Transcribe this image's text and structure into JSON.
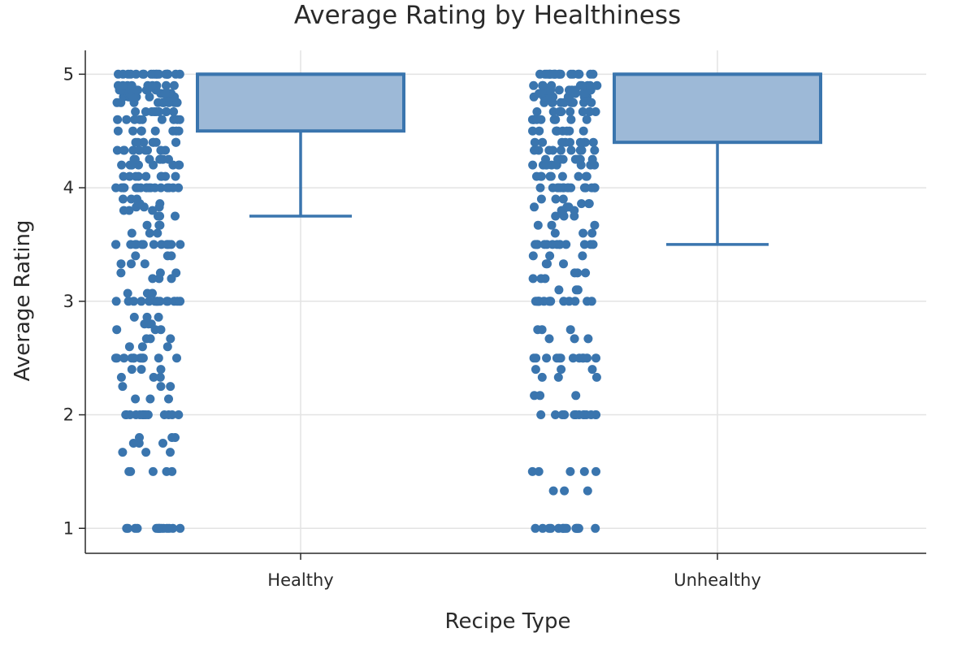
{
  "chart_data": {
    "type": "box",
    "title": "Average Rating by Healthiness",
    "xlabel": "Recipe Type",
    "ylabel": "Average Rating",
    "categories": [
      "Healthy",
      "Unhealthy"
    ],
    "yticks": [
      1,
      2,
      3,
      4,
      5
    ],
    "ylim": [
      0.78,
      5.21
    ],
    "grid": true,
    "color": "#3a75ae",
    "box_fill": "#9db9d7",
    "boxes": [
      {
        "name": "Healthy",
        "q1": 4.5,
        "median": 5.0,
        "q3": 5.0,
        "lower_whisker": 3.75,
        "upper_whisker": 5.0
      },
      {
        "name": "Unhealthy",
        "q1": 4.4,
        "median": 5.0,
        "q3": 5.0,
        "lower_whisker": 3.5,
        "upper_whisker": 5.0
      }
    ],
    "points_summary": [
      {
        "name": "Healthy",
        "values": [
          1,
          1.5,
          1.67,
          1.75,
          1.8,
          2,
          2.14,
          2.25,
          2.33,
          2.4,
          2.5,
          2.6,
          2.67,
          2.75,
          2.8,
          2.86,
          3,
          3.07,
          3.2,
          3.25,
          3.33,
          3.4,
          3.5,
          3.6,
          3.67,
          3.75,
          3.8,
          3.83,
          3.86,
          3.9,
          4,
          4.1,
          4.2,
          4.25,
          4.33,
          4.4,
          4.5,
          4.6,
          4.67,
          4.75,
          4.8,
          4.83,
          4.86,
          4.9,
          5
        ]
      },
      {
        "name": "Unhealthy",
        "values": [
          1,
          1.33,
          1.5,
          2,
          2.17,
          2.33,
          2.4,
          2.5,
          2.67,
          2.75,
          3,
          3.1,
          3.2,
          3.25,
          3.33,
          3.4,
          3.5,
          3.6,
          3.67,
          3.75,
          3.8,
          3.83,
          3.86,
          3.9,
          4,
          4.1,
          4.2,
          4.25,
          4.33,
          4.4,
          4.5,
          4.6,
          4.67,
          4.75,
          4.8,
          4.83,
          4.86,
          4.9,
          5
        ]
      }
    ]
  }
}
